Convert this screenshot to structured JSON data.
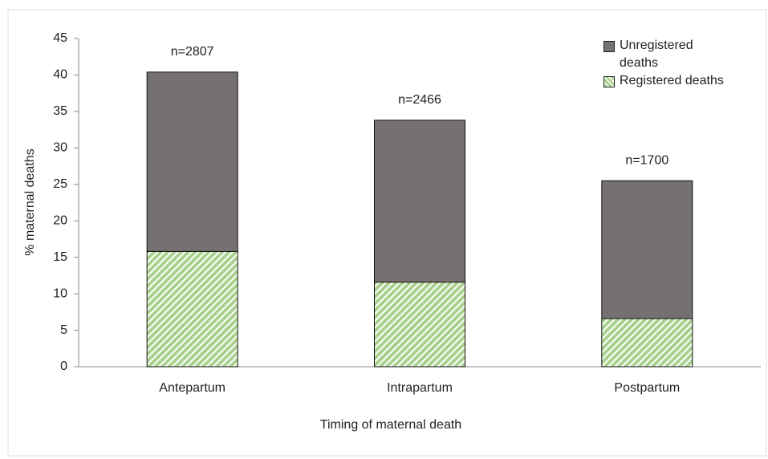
{
  "chart_data": {
    "type": "stacked_bar",
    "x_label": "Timing of maternal death",
    "y_label": "% maternal deaths",
    "categories": [
      "Antepartum",
      "Intrapartum",
      "Postpartum"
    ],
    "series": [
      {
        "name": "Registered deaths",
        "color": "#a9d18e",
        "pattern": "hatch",
        "values": [
          15.8,
          11.6,
          6.6
        ]
      },
      {
        "name": "Unregistered deaths",
        "color": "#767171",
        "values": [
          24.6,
          22.2,
          18.9
        ]
      }
    ],
    "bar_labels": [
      "n=2807",
      "n=2466",
      "n=1700"
    ],
    "ylim": [
      0,
      45
    ],
    "yticks": [
      0,
      5,
      10,
      15,
      20,
      25,
      30,
      35,
      40,
      45
    ],
    "grid": false,
    "legend": "upper right"
  }
}
